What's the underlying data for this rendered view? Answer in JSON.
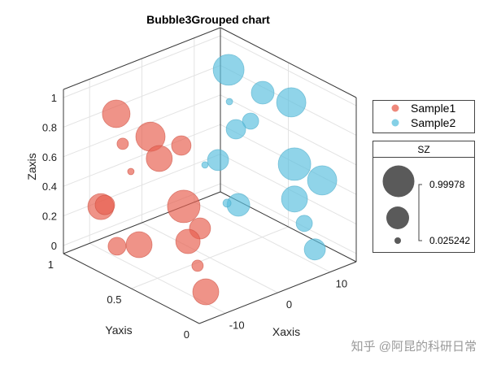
{
  "chart_data": {
    "type": "scatter",
    "subtype": "bubble3d",
    "title": "Bubble3Grouped chart",
    "xlabel": "Xaxis",
    "ylabel": "Yaxis",
    "zlabel": "Zaxis",
    "xlim": [
      -15,
      15
    ],
    "ylim": [
      0,
      1
    ],
    "zlim": [
      -0.055,
      1.055
    ],
    "xticks": [
      -10,
      0,
      10
    ],
    "xtick_labels": [
      "-10",
      "0",
      "10"
    ],
    "yticks": [
      0,
      0.5,
      1
    ],
    "ytick_labels": [
      "0",
      "0.5",
      "1"
    ],
    "zticks": [
      0,
      0.2,
      0.4,
      0.6,
      0.8,
      1
    ],
    "ztick_labels": [
      "0",
      "0.2",
      "0.4",
      "0.6",
      "0.8",
      "1"
    ],
    "grid": true,
    "legend_position": "right",
    "series": [
      {
        "name": "Sample1",
        "color": "#E8604F",
        "x": [
          -10,
          -10,
          -10,
          -10,
          -10,
          -10,
          -10,
          -10,
          -10,
          -10,
          -10,
          -10,
          -10,
          -10,
          -10
        ],
        "y": [
          0.804,
          0.552,
          0.756,
          0.325,
          0.487,
          0.696,
          0.917,
          0.887,
          0.307,
          0.187,
          0.276,
          0.798,
          0.636,
          0.205,
          0.145
        ],
        "z": [
          0.913,
          0.878,
          0.733,
          0.925,
          0.761,
          0.574,
          0.233,
          0.258,
          0.522,
          0.43,
          0.3,
          0.021,
          0.108,
          0.169,
          0.021
        ],
        "size": [
          0.817,
          0.878,
          0.208,
          0.513,
          0.756,
          0.025,
          0.756,
          0.513,
          1.0,
          0.573,
          0.695,
          0.452,
          0.756,
          0.208,
          0.756
        ]
      },
      {
        "name": "Sample2",
        "color": "#5BC0DE",
        "x": [
          10,
          10,
          10,
          10,
          10,
          10,
          10,
          10,
          10,
          10,
          10,
          10,
          10,
          10,
          10
        ],
        "y": [
          0.747,
          0.741,
          0.496,
          0.286,
          0.585,
          0.693,
          0.825,
          0.921,
          0.262,
          0.058,
          0.262,
          0.675,
          0.759,
          0.19,
          0.112
        ],
        "z": [
          0.959,
          0.747,
          0.923,
          0.957,
          0.689,
          0.583,
          0.312,
          0.234,
          0.551,
          0.537,
          0.315,
          0.08,
          0.052,
          0.184,
          0.045
        ],
        "size": [
          0.939,
          0.025,
          0.634,
          0.878,
          0.391,
          0.513,
          0.573,
          0.025,
          1.0,
          0.878,
          0.756,
          0.634,
          0.086,
          0.391,
          0.573
        ]
      }
    ],
    "size_legend": {
      "title": "SZ",
      "max_label": "0.99978",
      "min_label": "0.025242",
      "max": 0.99978,
      "min": 0.025242
    }
  },
  "watermark": "知乎 @阿昆的科研日常"
}
